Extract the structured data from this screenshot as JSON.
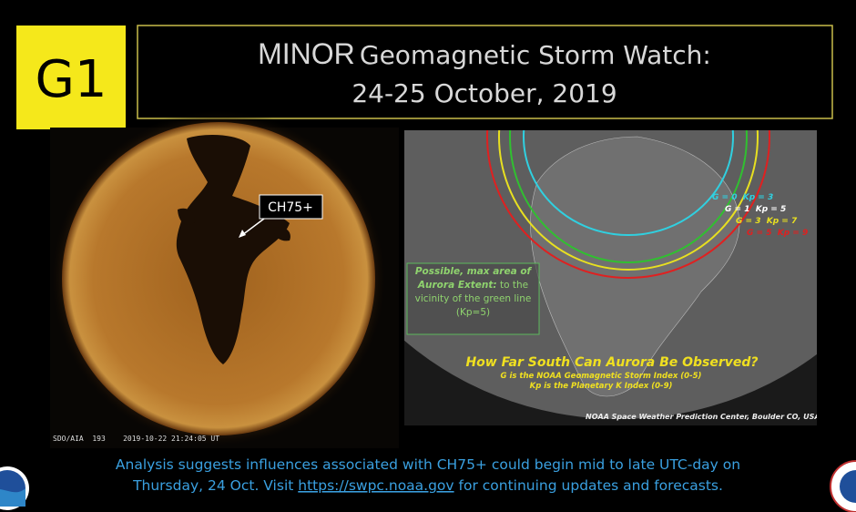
{
  "badge": "G1",
  "title": {
    "emphasis": "MINOR",
    "rest": "Geomagnetic Storm Watch:",
    "line2": "24-25 October, 2019"
  },
  "sun": {
    "label": "CH75+",
    "caption": "SDO/AIA  193    2019-10-22 21:24:05 UT"
  },
  "map": {
    "legend": [
      "G = 0  Kp = 3",
      "G = 1  Kp = 5",
      "G = 3  Kp = 7",
      "G = 5  Kp = 9"
    ],
    "callout": {
      "bold": "Possible, max area of Aurora Extent:",
      "rest": "to the vicinity of the green line (Kp=5)"
    },
    "heading": "How Far South Can Aurora Be Observed?",
    "sub1": "G is the NOAA Geomagnetic Storm Index (0-5)",
    "sub2": "Kp is the Planetary K Index (0-9)",
    "credit": "NOAA Space Weather Prediction Center, Boulder CO, USA"
  },
  "footer": {
    "line1": "Analysis suggests influences associated with CH75+ could begin mid to late UTC-day on",
    "line2_start": "Thursday, 24 Oct. Visit",
    "link": "https://swpc.noaa.gov",
    "line2_end": "for continuing updates and forecasts."
  }
}
